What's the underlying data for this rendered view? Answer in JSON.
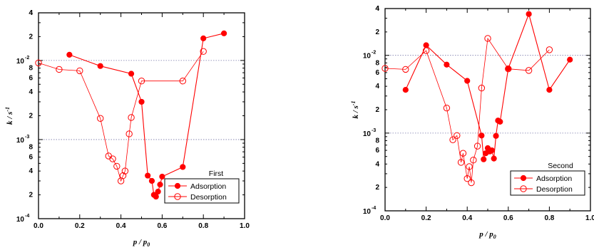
{
  "chart_data": [
    {
      "type": "scatter",
      "title": "",
      "xlabel": "p / p0",
      "ylabel": "k / s-1",
      "xlim": [
        0,
        1.0
      ],
      "ylim": [
        0.0001,
        0.04
      ],
      "yscale": "log",
      "grid": "dotted lines at 1e-3 and 1e-2",
      "x_ticks": [
        "0.0",
        "0.2",
        "0.4",
        "0.6",
        "0.8",
        "1.0"
      ],
      "y_major_ticks": [
        {
          "value": 0.0001,
          "mantissa": "10",
          "exp": "-4"
        },
        {
          "value": 0.001,
          "mantissa": "10",
          "exp": "-3"
        },
        {
          "value": 0.01,
          "mantissa": "10",
          "exp": "-2"
        }
      ],
      "y_minor_labels": [
        "2",
        "4",
        "6",
        "8"
      ],
      "legend": {
        "title": "First",
        "position": "bottom-right"
      },
      "series": [
        {
          "name": "Adsorption",
          "marker": "filled-circle",
          "color": "#ff0000",
          "x": [
            0.15,
            0.3,
            0.45,
            0.5,
            0.53,
            0.55,
            0.56,
            0.57,
            0.58,
            0.59,
            0.6,
            0.7,
            0.8,
            0.9
          ],
          "y": [
            0.0118,
            0.0085,
            0.0068,
            0.003,
            0.00035,
            0.0003,
            0.0002,
            0.00019,
            0.00022,
            0.00027,
            0.00034,
            0.00045,
            0.019,
            0.022
          ]
        },
        {
          "name": "Desorption",
          "marker": "open-circle",
          "color": "#ff0000",
          "x": [
            0.0,
            0.1,
            0.2,
            0.3,
            0.34,
            0.36,
            0.38,
            0.4,
            0.41,
            0.42,
            0.44,
            0.45,
            0.5,
            0.7,
            0.8
          ],
          "y": [
            0.0093,
            0.0077,
            0.0074,
            0.00185,
            0.00062,
            0.00057,
            0.00046,
            0.0003,
            0.00035,
            0.0004,
            0.00118,
            0.0019,
            0.0055,
            0.0055,
            0.013
          ]
        }
      ]
    },
    {
      "type": "scatter",
      "title": "",
      "xlabel": "p / p0",
      "ylabel": "k / s-1",
      "xlim": [
        0,
        1.0
      ],
      "ylim": [
        0.0001,
        0.04
      ],
      "yscale": "log",
      "grid": "dotted lines at 1e-3 and 1e-2",
      "x_ticks": [
        "0.0",
        "0.2",
        "0.4",
        "0.6",
        "0.8",
        "1.0"
      ],
      "y_major_ticks": [
        {
          "value": 0.0001,
          "mantissa": "10",
          "exp": "-4"
        },
        {
          "value": 0.001,
          "mantissa": "10",
          "exp": "-3"
        },
        {
          "value": 0.01,
          "mantissa": "10",
          "exp": "-2"
        }
      ],
      "y_minor_labels": [
        "2",
        "4",
        "6",
        "8"
      ],
      "legend": {
        "title": "Second",
        "position": "bottom-right"
      },
      "series": [
        {
          "name": "Adsorption",
          "marker": "filled-circle",
          "color": "#ff0000",
          "x": [
            0.1,
            0.2,
            0.3,
            0.4,
            0.47,
            0.48,
            0.49,
            0.5,
            0.51,
            0.52,
            0.53,
            0.54,
            0.55,
            0.56,
            0.6,
            0.7,
            0.8,
            0.9
          ],
          "y": [
            0.0036,
            0.0135,
            0.0076,
            0.0047,
            0.00093,
            0.00046,
            0.00055,
            0.00064,
            0.00058,
            0.0006,
            0.00047,
            0.00092,
            0.00145,
            0.0014,
            0.0068,
            0.034,
            0.0036,
            0.0088
          ]
        },
        {
          "name": "Desorption",
          "marker": "open-circle",
          "color": "#ff0000",
          "x": [
            0.0,
            0.1,
            0.2,
            0.3,
            0.33,
            0.35,
            0.37,
            0.38,
            0.4,
            0.41,
            0.42,
            0.43,
            0.45,
            0.47,
            0.5,
            0.6,
            0.7,
            0.8
          ],
          "y": [
            0.0068,
            0.0066,
            0.0115,
            0.0021,
            0.00082,
            0.00093,
            0.00042,
            0.00055,
            0.00026,
            0.00037,
            0.00023,
            0.00045,
            0.00068,
            0.0038,
            0.0165,
            0.0067,
            0.0064,
            0.0118
          ]
        }
      ]
    }
  ]
}
